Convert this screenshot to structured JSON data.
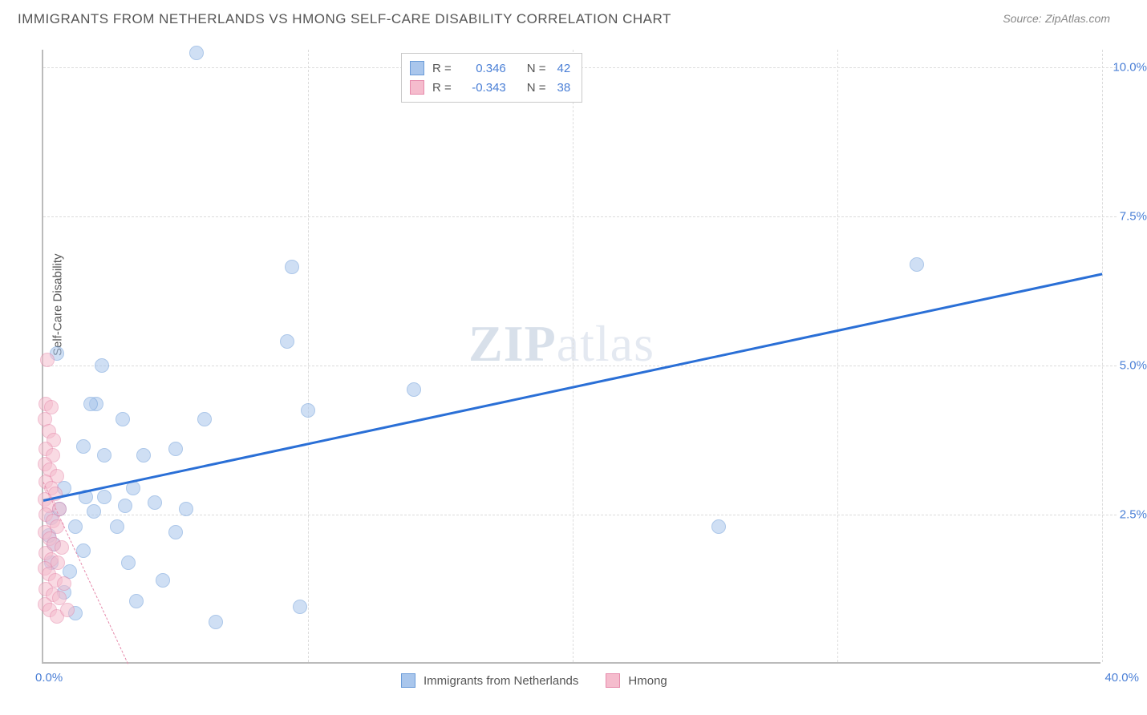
{
  "title": "IMMIGRANTS FROM NETHERLANDS VS HMONG SELF-CARE DISABILITY CORRELATION CHART",
  "source_label": "Source:",
  "source_value": "ZipAtlas.com",
  "ylabel": "Self-Care Disability",
  "watermark": {
    "bold": "ZIP",
    "rest": "atlas"
  },
  "chart": {
    "type": "scatter",
    "background_color": "#ffffff",
    "grid_color": "#dcdcdc",
    "axis_color": "#bbbbbb",
    "tick_label_color": "#4a7fd6",
    "title_color": "#555555",
    "title_fontsize": 17,
    "label_fontsize": 15,
    "xlim": [
      0,
      40
    ],
    "ylim": [
      0,
      10.3
    ],
    "xticks": [
      0,
      20,
      40
    ],
    "xtick_labels": [
      "0.0%",
      "",
      "40.0%"
    ],
    "yticks": [
      2.5,
      5.0,
      7.5,
      10.0
    ],
    "ytick_labels": [
      "2.5%",
      "5.0%",
      "7.5%",
      "10.0%"
    ],
    "vgrid_positions": [
      10,
      20,
      30,
      40
    ],
    "point_radius": 9,
    "point_opacity": 0.55,
    "series": [
      {
        "name": "Immigrants from Netherlands",
        "color_fill": "#a9c6ec",
        "color_stroke": "#6a9bd8",
        "R": "0.346",
        "N": "42",
        "trend": {
          "x0": 0,
          "y0": 2.75,
          "x1": 40,
          "y1": 6.55,
          "color": "#2a6fd6",
          "width": 2.5,
          "dash": false
        },
        "points": [
          [
            5.8,
            10.25
          ],
          [
            0.5,
            5.2
          ],
          [
            2.2,
            5.0
          ],
          [
            9.4,
            6.65
          ],
          [
            9.2,
            5.4
          ],
          [
            14.0,
            4.6
          ],
          [
            33.0,
            6.7
          ],
          [
            10.0,
            4.25
          ],
          [
            2.0,
            4.35
          ],
          [
            3.0,
            4.1
          ],
          [
            6.1,
            4.1
          ],
          [
            5.0,
            3.6
          ],
          [
            1.5,
            3.65
          ],
          [
            2.3,
            3.5
          ],
          [
            3.8,
            3.5
          ],
          [
            0.8,
            2.95
          ],
          [
            1.6,
            2.8
          ],
          [
            2.3,
            2.8
          ],
          [
            3.1,
            2.65
          ],
          [
            4.2,
            2.7
          ],
          [
            5.4,
            2.6
          ],
          [
            0.6,
            2.6
          ],
          [
            1.9,
            2.55
          ],
          [
            0.3,
            2.45
          ],
          [
            1.2,
            2.3
          ],
          [
            2.8,
            2.3
          ],
          [
            5.0,
            2.2
          ],
          [
            25.5,
            2.3
          ],
          [
            0.4,
            2.0
          ],
          [
            1.5,
            1.9
          ],
          [
            3.2,
            1.7
          ],
          [
            1.0,
            1.55
          ],
          [
            3.5,
            1.05
          ],
          [
            1.2,
            0.85
          ],
          [
            6.5,
            0.7
          ],
          [
            9.7,
            0.95
          ],
          [
            0.8,
            1.2
          ],
          [
            0.3,
            1.7
          ],
          [
            1.8,
            4.35
          ],
          [
            3.4,
            2.95
          ],
          [
            4.5,
            1.4
          ],
          [
            0.2,
            2.15
          ]
        ]
      },
      {
        "name": "Hmong",
        "color_fill": "#f5bccd",
        "color_stroke": "#e68aab",
        "R": "-0.343",
        "N": "38",
        "trend": {
          "x0": 0,
          "y0": 3.05,
          "x1": 3.2,
          "y1": 0,
          "color": "#e68aab",
          "width": 1.5,
          "dash": true
        },
        "points": [
          [
            0.15,
            5.1
          ],
          [
            0.1,
            4.35
          ],
          [
            0.3,
            4.3
          ],
          [
            0.05,
            4.1
          ],
          [
            0.2,
            3.9
          ],
          [
            0.4,
            3.75
          ],
          [
            0.1,
            3.6
          ],
          [
            0.35,
            3.5
          ],
          [
            0.05,
            3.35
          ],
          [
            0.25,
            3.25
          ],
          [
            0.5,
            3.15
          ],
          [
            0.1,
            3.05
          ],
          [
            0.3,
            2.95
          ],
          [
            0.45,
            2.85
          ],
          [
            0.05,
            2.75
          ],
          [
            0.2,
            2.65
          ],
          [
            0.6,
            2.6
          ],
          [
            0.1,
            2.5
          ],
          [
            0.35,
            2.4
          ],
          [
            0.5,
            2.3
          ],
          [
            0.05,
            2.2
          ],
          [
            0.25,
            2.1
          ],
          [
            0.4,
            2.0
          ],
          [
            0.7,
            1.95
          ],
          [
            0.1,
            1.85
          ],
          [
            0.3,
            1.75
          ],
          [
            0.55,
            1.7
          ],
          [
            0.05,
            1.6
          ],
          [
            0.2,
            1.5
          ],
          [
            0.45,
            1.4
          ],
          [
            0.8,
            1.35
          ],
          [
            0.1,
            1.25
          ],
          [
            0.35,
            1.15
          ],
          [
            0.6,
            1.1
          ],
          [
            0.05,
            1.0
          ],
          [
            0.25,
            0.9
          ],
          [
            0.5,
            0.8
          ],
          [
            0.9,
            0.9
          ]
        ]
      }
    ]
  },
  "top_legend": {
    "rows": [
      {
        "swatch_fill": "#a9c6ec",
        "swatch_stroke": "#6a9bd8",
        "R_label": "R =",
        "R_val": "0.346",
        "N_label": "N =",
        "N_val": "42"
      },
      {
        "swatch_fill": "#f5bccd",
        "swatch_stroke": "#e68aab",
        "R_label": "R =",
        "R_val": "-0.343",
        "N_label": "N =",
        "N_val": "38"
      }
    ]
  },
  "bottom_legend": {
    "items": [
      {
        "swatch_fill": "#a9c6ec",
        "swatch_stroke": "#6a9bd8",
        "label": "Immigrants from Netherlands"
      },
      {
        "swatch_fill": "#f5bccd",
        "swatch_stroke": "#e68aab",
        "label": "Hmong"
      }
    ]
  }
}
